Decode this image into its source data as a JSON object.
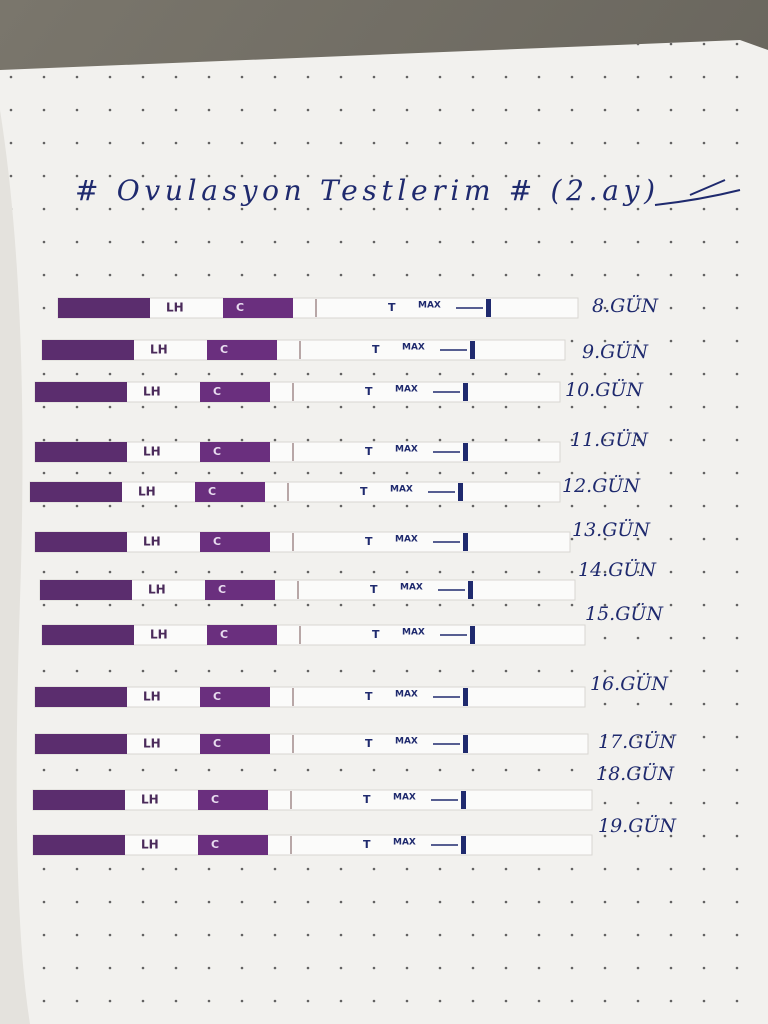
{
  "title": "# Ovulasyon Testlerim # (2.ay)",
  "strip_text": {
    "lh": "LH",
    "c": "C",
    "t": "T",
    "max": "MAX"
  },
  "days": [
    "8.GÜN",
    "9.GÜN",
    "10.GÜN",
    "11.GÜN",
    "12.GÜN",
    "13.GÜN",
    "14.GÜN",
    "15.GÜN",
    "16.GÜN",
    "17.GÜN",
    "18.GÜN",
    "19.GÜN"
  ]
}
